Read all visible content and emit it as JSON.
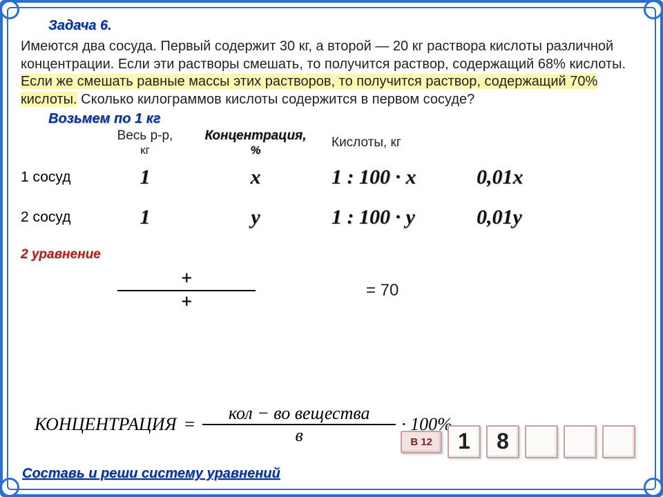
{
  "title": "Задача 6.",
  "problem_parts": {
    "p1": "Имеются два сосуда. Первый содержит 30 кг, а второй  — 20 кг раствора кислоты различной концентрации. Если эти растворы смешать, то получится раствор, содержащий 68% кислоты.",
    "p2_hl": " Если же смешать равные массы этих растворов, то получится раствор, содержащий 70% кислоты.",
    "p3": " Сколько килограммов кислоты содержится в первом сосуде?"
  },
  "sub1": "Возьмем по 1 кг",
  "headers": {
    "label": "",
    "weight": "Весь р-р,",
    "weight_sub": "кг",
    "conc": "Концентрация,",
    "conc_sub": "%",
    "acid": "Кислоты, кг"
  },
  "rows": [
    {
      "label": "1 сосуд",
      "weight": "1",
      "conc": "x",
      "acid_expr": "1 : 100 · x",
      "acid_res": "0,01x"
    },
    {
      "label": "2 сосуд",
      "weight": "1",
      "conc": "y",
      "acid_expr": "1 : 100 · y",
      "acid_res": "0,01y"
    }
  ],
  "eqn_label": "2 уравнение",
  "frac": {
    "top": "+",
    "bot": "+"
  },
  "eq_right": "= 70",
  "formula": {
    "lhs": "КОНЦЕНТРАЦИЯ",
    "eq": "=",
    "num": "кол − во  вещества",
    "den": "в",
    "mult": "· 100%"
  },
  "hint_btn": "В 12",
  "answer_digits": [
    "1",
    "8",
    "",
    "",
    ""
  ],
  "bottom_link": "Составь и реши систему уравнений",
  "colors": {
    "frame": "#2a6fd4",
    "title": "#003399",
    "highlight": "#fff6b0",
    "eqn": "#b02020",
    "hint_bg": "#f4e2e2",
    "hint_border": "#c9a0a0"
  }
}
